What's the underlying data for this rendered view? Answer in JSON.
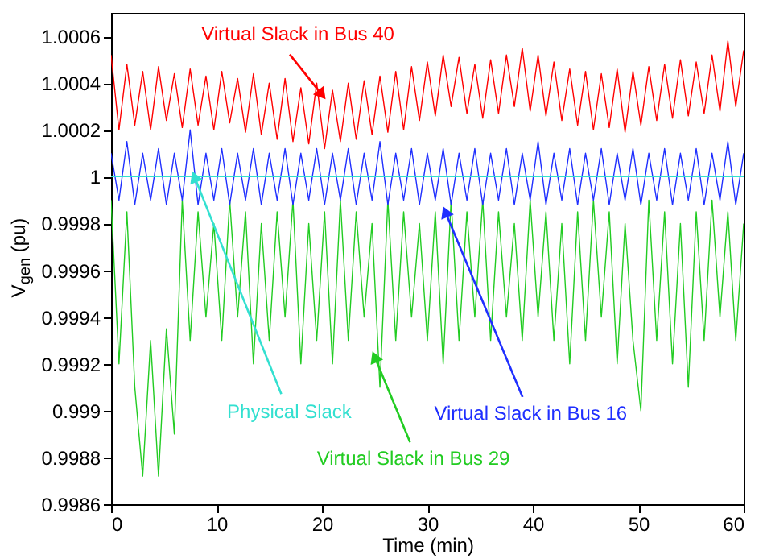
{
  "chart_data": {
    "type": "line",
    "xlabel": "Time (min)",
    "ylabel": "V$_{gen}$ (pu)",
    "x": [
      0,
      0.75,
      1.5,
      2.25,
      3,
      3.75,
      4.5,
      5.25,
      6,
      6.75,
      7.5,
      8.25,
      9,
      9.75,
      10.5,
      11.25,
      12,
      12.75,
      13.5,
      14.25,
      15,
      15.75,
      16.5,
      17.25,
      18,
      18.75,
      19.5,
      20.25,
      21,
      21.75,
      22.5,
      23.25,
      24,
      24.75,
      25.5,
      26.25,
      27,
      27.75,
      28.5,
      29.25,
      30,
      30.75,
      31.5,
      32.25,
      33,
      33.75,
      34.5,
      35.25,
      36,
      36.75,
      37.5,
      38.25,
      39,
      39.75,
      40.5,
      41.25,
      42,
      42.75,
      43.5,
      44.25,
      45,
      45.75,
      46.5,
      47.25,
      48,
      48.75,
      49.5,
      50.25,
      51,
      51.75,
      52.5,
      53.25,
      54,
      54.75,
      55.5,
      56.25,
      57,
      57.75,
      58.5,
      59.25,
      60
    ],
    "series": [
      {
        "color": "#22cc22",
        "values": [
          0.9999,
          0.9992,
          0.99985,
          0.9991,
          0.99872,
          0.9993,
          0.99872,
          0.99935,
          0.9989,
          0.9999,
          0.9993,
          0.99985,
          0.9994,
          0.9998,
          0.9993,
          0.9999,
          0.9994,
          0.99985,
          0.9992,
          0.9998,
          0.9993,
          0.99985,
          0.9994,
          0.9999,
          0.9992,
          0.9998,
          0.9993,
          0.99985,
          0.9992,
          0.9999,
          0.9993,
          0.99985,
          0.9994,
          0.9998,
          0.9991,
          0.9999,
          0.9993,
          0.99985,
          0.9994,
          0.9998,
          0.9993,
          0.99985,
          0.9992,
          0.9999,
          0.9993,
          0.99985,
          0.9994,
          0.9999,
          0.9993,
          0.99985,
          0.9994,
          0.9998,
          0.9993,
          0.9999,
          0.9994,
          0.99985,
          0.9993,
          0.9998,
          0.9992,
          0.99985,
          0.9993,
          0.9999,
          0.9994,
          0.99985,
          0.9992,
          0.9998,
          0.9993,
          0.999,
          0.9999,
          0.9993,
          0.99985,
          0.9992,
          0.9998,
          0.9991,
          0.99985,
          0.9993,
          0.9999,
          0.9994,
          0.99985,
          0.9993,
          0.9998
        ]
      },
      {
        "color": "#ff0000",
        "values": [
          1.00052,
          1.0002,
          1.00048,
          1.00022,
          1.00045,
          1.0002,
          1.00047,
          1.00024,
          1.00044,
          1.00021,
          1.00046,
          1.00022,
          1.00043,
          1.0002,
          1.00045,
          1.00023,
          1.00042,
          1.00019,
          1.00044,
          1.00018,
          1.0004,
          1.00016,
          1.00042,
          1.00015,
          1.00038,
          1.00014,
          1.0004,
          1.00012,
          1.00037,
          1.00015,
          1.0004,
          1.00016,
          1.00041,
          1.00018,
          1.00043,
          1.00019,
          1.00045,
          1.0002,
          1.00047,
          1.00024,
          1.00049,
          1.00026,
          1.00052,
          1.0003,
          1.00051,
          1.00027,
          1.00048,
          1.00025,
          1.0005,
          1.00027,
          1.00052,
          1.0003,
          1.00055,
          1.00028,
          1.00052,
          1.00026,
          1.00049,
          1.00024,
          1.00046,
          1.00022,
          1.00045,
          1.0002,
          1.00044,
          1.00021,
          1.00046,
          1.00019,
          1.00045,
          1.00022,
          1.00047,
          1.00024,
          1.00048,
          1.00025,
          1.0005,
          1.00026,
          1.00049,
          1.00027,
          1.00052,
          1.00028,
          1.00058,
          1.0003,
          1.00054
        ]
      },
      {
        "color": "#1f2fff",
        "values": [
          1.0001,
          0.9999,
          1.00015,
          0.99988,
          1.0001,
          0.9999,
          1.00012,
          0.99988,
          1.0001,
          0.9999,
          1.0002,
          0.99988,
          1.0001,
          0.9999,
          1.00012,
          0.99988,
          1.0001,
          0.9999,
          1.00012,
          0.99988,
          1.0001,
          0.9999,
          1.00012,
          0.99988,
          1.0001,
          0.9999,
          1.00012,
          0.99988,
          1.0001,
          0.9999,
          1.00012,
          0.99988,
          1.0001,
          0.9999,
          1.00015,
          0.99988,
          1.0001,
          0.9999,
          1.00012,
          0.99988,
          1.0001,
          0.9999,
          1.00012,
          0.99988,
          1.0001,
          0.9999,
          1.00012,
          0.99988,
          1.0001,
          0.9999,
          1.00012,
          0.99988,
          1.0001,
          0.9999,
          1.00015,
          0.99988,
          1.0001,
          0.9999,
          1.00012,
          0.99988,
          1.0001,
          0.9999,
          1.00012,
          0.99988,
          1.0001,
          0.9999,
          1.00012,
          0.99988,
          1.0001,
          0.9999,
          1.00012,
          0.99988,
          1.0001,
          0.9999,
          1.00012,
          0.99988,
          1.0001,
          0.9999,
          1.00015,
          0.99988,
          1.0001
        ]
      },
      {
        "color": "#33e0d0",
        "x": [
          0,
          60
        ],
        "values": [
          1,
          1
        ]
      }
    ],
    "annotations": [
      {
        "text": "Virtual Slack in Bus 29",
        "x": 25,
        "y": 0.99923
      },
      {
        "text": "Virtual Slack in Bus 40",
        "x": 20,
        "y": 1.00035
      },
      {
        "text": "Virtual Slack in Bus 16",
        "x": 31.7,
        "y": 0.99985
      },
      {
        "text": "Physical Slack",
        "x": 7.9,
        "y": 1
      }
    ],
    "xlim": [
      0,
      60
    ],
    "ylim": [
      0.9986,
      1.0007
    ],
    "xticks": [
      0,
      10,
      20,
      30,
      40,
      50,
      60
    ],
    "yticks": [
      0.9986,
      0.9988,
      0.999,
      0.9992,
      0.9994,
      0.9996,
      0.9998,
      1,
      1.0002,
      1.0004,
      1.0006
    ],
    "grid": false,
    "legend": false
  }
}
